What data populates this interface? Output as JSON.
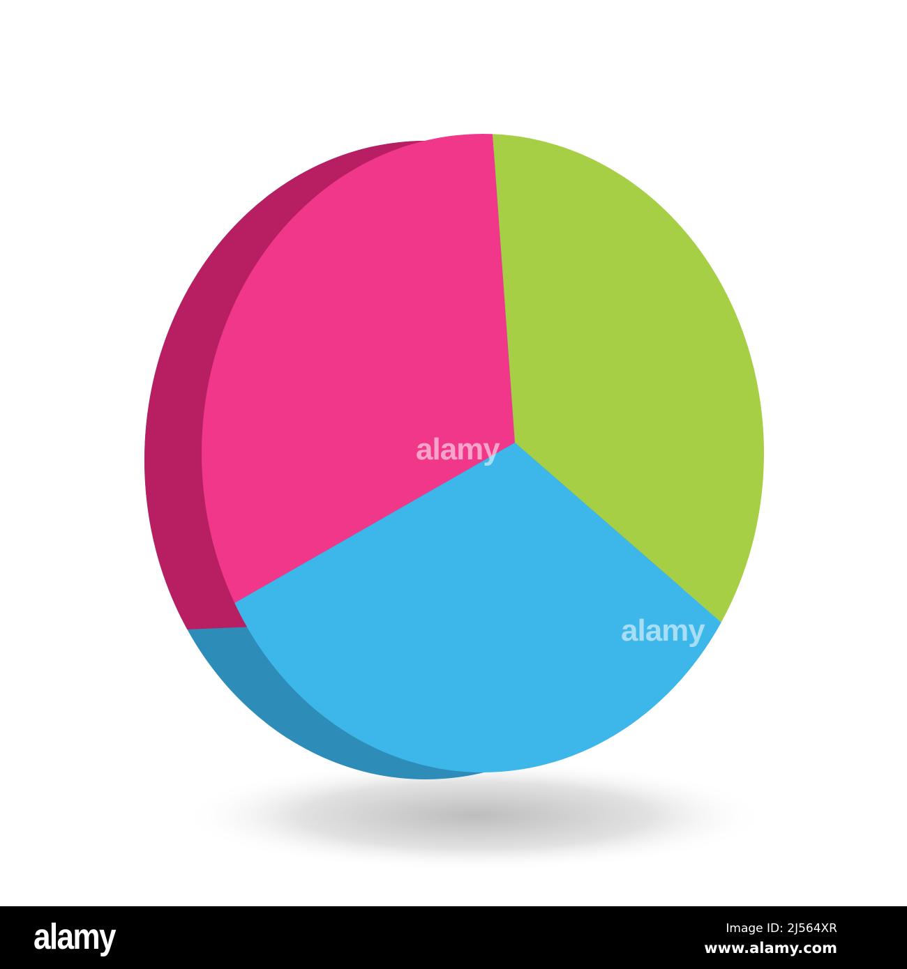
{
  "chart_data": {
    "type": "pie",
    "style": "3d",
    "title": "",
    "slices": [
      {
        "value": 33.3,
        "color": "#F0378A",
        "side_color": "#B81F63"
      },
      {
        "value": 33.3,
        "color": "#A6CF45",
        "side_color": "#86A83A"
      },
      {
        "value": 33.3,
        "color": "#3DB6E9",
        "side_color": "#2E8DB8"
      }
    ],
    "legend": "none"
  },
  "watermark": "alamy",
  "footer": {
    "logo": "alamy",
    "image_id": "Image ID: 2J564XR",
    "website": "www.alamy.com"
  }
}
